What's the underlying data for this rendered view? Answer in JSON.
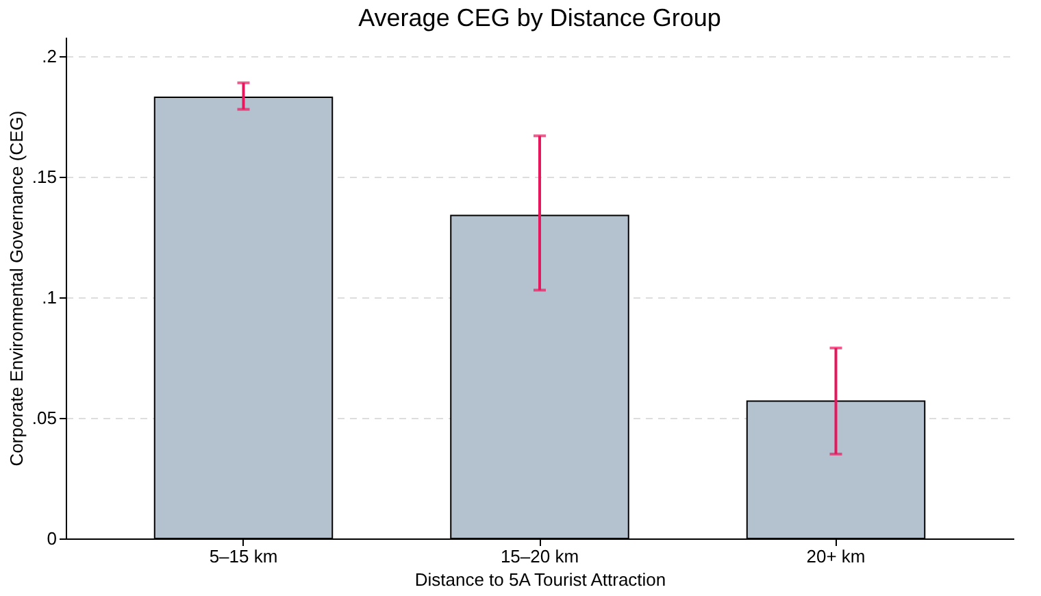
{
  "chart_data": {
    "type": "bar",
    "title": "Average CEG by Distance Group",
    "xlabel": "Distance to 5A Tourist Attraction",
    "ylabel": "Corporate Environmental Governance (CEG)",
    "categories": [
      "5–15 km",
      "15–20 km",
      "20+ km"
    ],
    "values": [
      0.183,
      0.134,
      0.057
    ],
    "color": "#b4c2d0",
    "errors": [
      [
        0.178,
        0.189
      ],
      [
        0.103,
        0.167
      ],
      [
        0.035,
        0.079
      ]
    ],
    "ylim": [
      0,
      0.208
    ],
    "yticks": [
      {
        "value": 0,
        "label": "0"
      },
      {
        "value": 0.05,
        "label": ".05"
      },
      {
        "value": 0.1,
        "label": ".1"
      },
      {
        "value": 0.15,
        "label": ".15"
      },
      {
        "value": 0.2,
        "label": ".2"
      }
    ],
    "grid": "y"
  }
}
